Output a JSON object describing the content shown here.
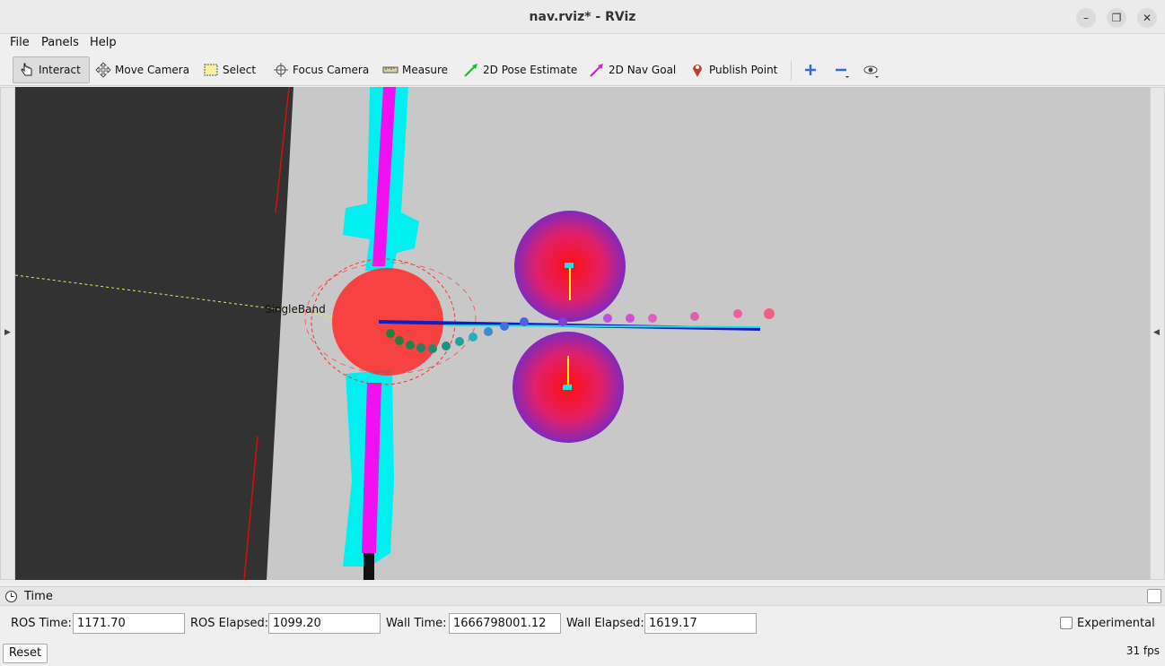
{
  "window": {
    "title": "nav.rviz* - RViz"
  },
  "menu": {
    "file": "File",
    "panels": "Panels",
    "help": "Help"
  },
  "toolbar": {
    "interact": "Interact",
    "move_camera": "Move Camera",
    "select": "Select",
    "focus_camera": "Focus Camera",
    "measure": "Measure",
    "pose_estimate": "2D Pose Estimate",
    "nav_goal": "2D Nav Goal",
    "publish_point": "Publish Point"
  },
  "viewport": {
    "frame_label": "SingleBand"
  },
  "time_panel": {
    "title": "Time",
    "ros_time_label": "ROS Time:",
    "ros_time": "1171.70",
    "ros_elapsed_label": "ROS Elapsed:",
    "ros_elapsed": "1099.20",
    "wall_time_label": "Wall Time:",
    "wall_time": "1666798001.12",
    "wall_elapsed_label": "Wall Elapsed:",
    "wall_elapsed": "1619.17",
    "experimental_label": "Experimental"
  },
  "footer": {
    "reset": "Reset",
    "fps": "31 fps"
  },
  "colors": {
    "costmap_cyan": "#00ffff",
    "costmap_magenta": "#ff00ff",
    "obstacle_red": "#ff1e1e",
    "obstacle_purple": "#6a2bd0",
    "path_blue": "#1020c0"
  }
}
